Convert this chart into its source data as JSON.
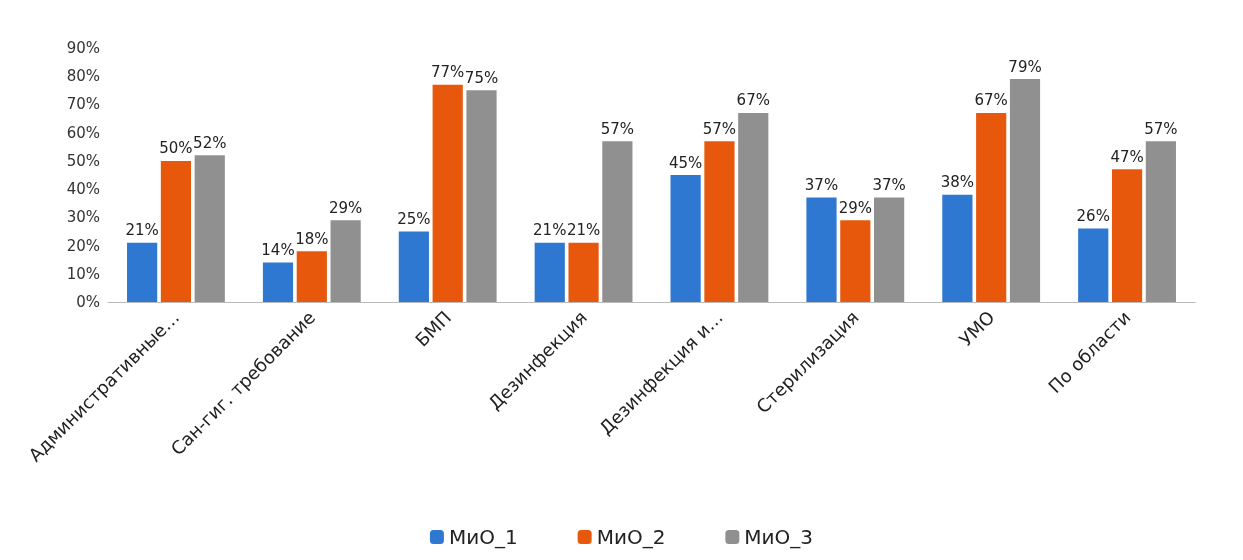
{
  "chart_data": {
    "type": "bar",
    "categories": [
      "Административные…",
      "Сан-гиг. требование",
      "БМП",
      "Дезинфекция",
      "Дезинфекция и…",
      "Стерилизация",
      "УМО",
      "По области"
    ],
    "series": [
      {
        "name": "МиО_1",
        "color": "#2e78d2",
        "values": [
          21,
          14,
          25,
          21,
          45,
          37,
          38,
          26
        ],
        "value_labels": [
          "21%",
          "14%",
          "25%",
          "21%",
          "45%",
          "37%",
          "38%",
          "26%"
        ]
      },
      {
        "name": "МиО_2",
        "color": "#e8580c",
        "values": [
          50,
          18,
          77,
          21,
          57,
          29,
          67,
          47
        ],
        "value_labels": [
          "50%",
          "18%",
          "77%",
          "21%",
          "57%",
          "29%",
          "67%",
          "47%"
        ]
      },
      {
        "name": "МиО_3",
        "color": "#909090",
        "values": [
          52,
          29,
          75,
          57,
          67,
          37,
          79,
          57
        ],
        "value_labels": [
          "52%",
          "29%",
          "75%",
          "57%",
          "67%",
          "37%",
          "79%",
          "57%"
        ]
      }
    ],
    "ylim": [
      0,
      90
    ],
    "yticks": [
      {
        "value": 0,
        "label": "0%"
      },
      {
        "value": 10,
        "label": "10%"
      },
      {
        "value": 20,
        "label": "20%"
      },
      {
        "value": 30,
        "label": "30%"
      },
      {
        "value": 40,
        "label": "40%"
      },
      {
        "value": 50,
        "label": "50%"
      },
      {
        "value": 60,
        "label": "60%"
      },
      {
        "value": 70,
        "label": "70%"
      },
      {
        "value": 80,
        "label": "80%"
      },
      {
        "value": 90,
        "label": "90%"
      }
    ],
    "grid": false,
    "legend": "bottom"
  }
}
